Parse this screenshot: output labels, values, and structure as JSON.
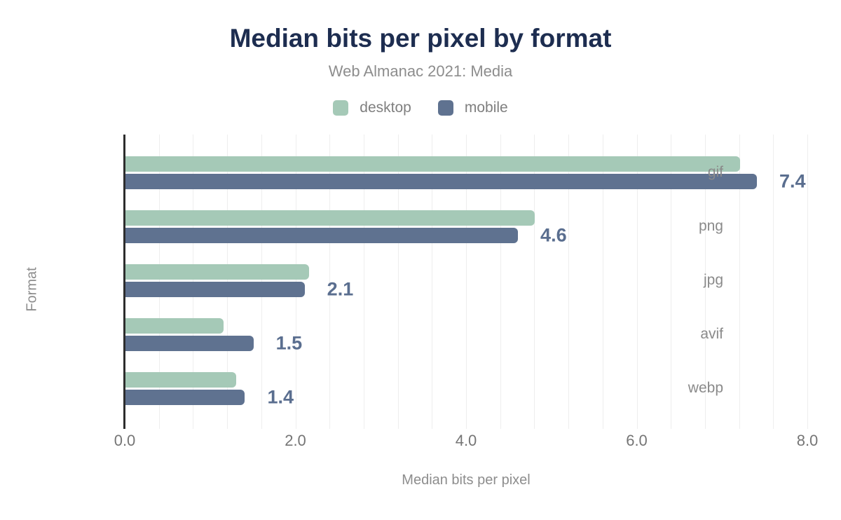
{
  "header": {
    "title": "Median bits per pixel by format",
    "subtitle": "Web Almanac 2021: Media"
  },
  "colors": {
    "title": "#1d2d50",
    "desktop": "#a5c9b7",
    "mobile": "#5f7290",
    "value_label": "#5a6e8f",
    "axis_line": "#2d2d2d",
    "gridline": "#eeeeee"
  },
  "chart_data": {
    "type": "bar",
    "orientation": "horizontal",
    "title": "Median bits per pixel by format",
    "subtitle": "Web Almanac 2021: Media",
    "categories": [
      "gif",
      "png",
      "jpg",
      "avif",
      "webp"
    ],
    "series": [
      {
        "name": "desktop",
        "color": "#a5c9b7",
        "values": [
          7.2,
          4.8,
          2.15,
          1.15,
          1.3
        ]
      },
      {
        "name": "mobile",
        "color": "#5f7290",
        "values": [
          7.4,
          4.6,
          2.1,
          1.5,
          1.4
        ]
      }
    ],
    "value_labels": [
      "7.4",
      "4.6",
      "2.1",
      "1.5",
      "1.4"
    ],
    "value_labels_series": "mobile",
    "xlabel": "Median bits per pixel",
    "ylabel": "Format",
    "xlim": [
      0,
      8
    ],
    "xticks": [
      0,
      2,
      4,
      6,
      8
    ],
    "xtick_labels": [
      "0.0",
      "2.0",
      "4.0",
      "6.0",
      "8.0"
    ],
    "grid": {
      "show": true,
      "step": 0.4,
      "axis": "x"
    },
    "legend_position": "top"
  }
}
